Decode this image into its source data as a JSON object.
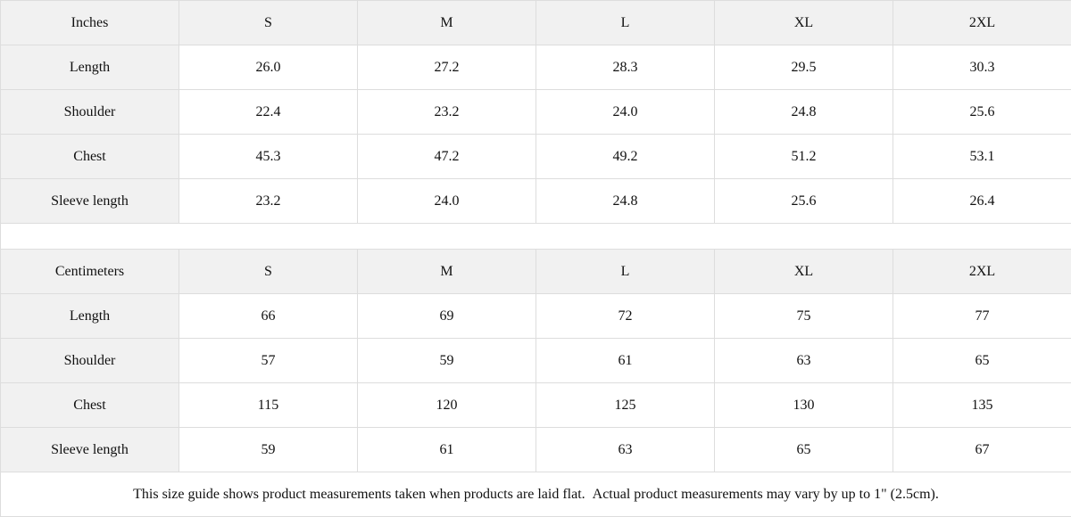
{
  "table": {
    "sections": [
      {
        "unit_label": "Inches",
        "size_headers": [
          "S",
          "M",
          "L",
          "XL",
          "2XL"
        ],
        "rows": [
          {
            "label": "Length",
            "values": [
              "26.0",
              "27.2",
              "28.3",
              "29.5",
              "30.3"
            ]
          },
          {
            "label": "Shoulder",
            "values": [
              "22.4",
              "23.2",
              "24.0",
              "24.8",
              "25.6"
            ]
          },
          {
            "label": "Chest",
            "values": [
              "45.3",
              "47.2",
              "49.2",
              "51.2",
              "53.1"
            ]
          },
          {
            "label": "Sleeve length",
            "values": [
              "23.2",
              "24.0",
              "24.8",
              "25.6",
              "26.4"
            ]
          }
        ]
      },
      {
        "unit_label": "Centimeters",
        "size_headers": [
          "S",
          "M",
          "L",
          "XL",
          "2XL"
        ],
        "rows": [
          {
            "label": "Length",
            "values": [
              "66",
              "69",
              "72",
              "75",
              "77"
            ]
          },
          {
            "label": "Shoulder",
            "values": [
              "57",
              "59",
              "61",
              "63",
              "65"
            ]
          },
          {
            "label": "Chest",
            "values": [
              "115",
              "120",
              "125",
              "130",
              "135"
            ]
          },
          {
            "label": "Sleeve length",
            "values": [
              "59",
              "61",
              "63",
              "65",
              "67"
            ]
          }
        ]
      }
    ],
    "footer_note": "This size guide shows product measurements taken when products are laid flat.  Actual product measurements may vary by up to 1\" (2.5cm)."
  },
  "colors": {
    "header_cell_bg": "#f1f1f1",
    "label_cell_bg": "#f1f1f1",
    "border": "#dddddd",
    "text": "#111111",
    "body_bg": "#ffffff"
  }
}
